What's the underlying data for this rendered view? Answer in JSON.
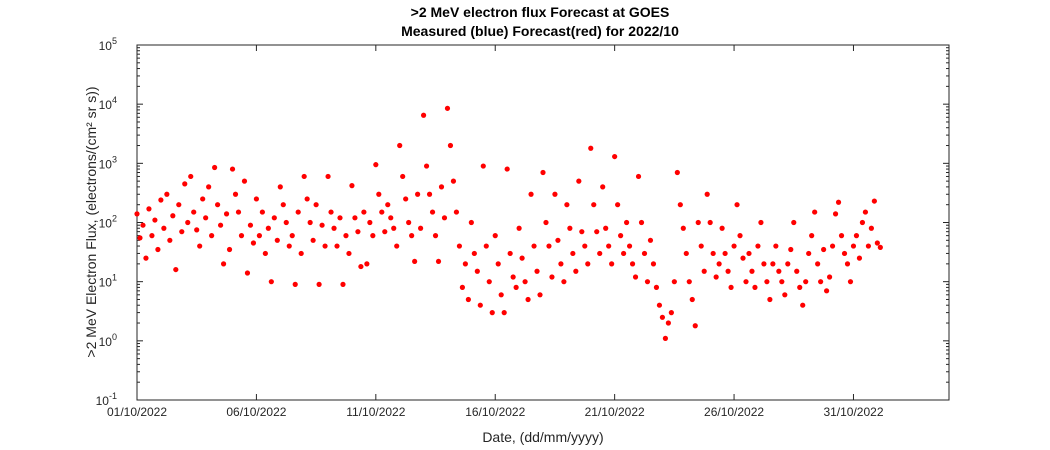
{
  "chart_data": {
    "type": "scatter",
    "title": ">2 MeV electron flux Forecast at GOES",
    "subtitle": "Measured (blue) Forecast(red) for 2022/10",
    "xlabel": "Date, (dd/mm/yyyy)",
    "ylabel": ">2 MeV Electron Flux, (electrons/(cm² sr s))",
    "yscale": "log",
    "ylim": [
      0.1,
      100000
    ],
    "xlim": [
      "01/10/2022",
      "04/11/2022"
    ],
    "x_ticks": [
      "01/10/2022",
      "06/10/2022",
      "11/10/2022",
      "16/10/2022",
      "21/10/2022",
      "26/10/2022",
      "31/10/2022"
    ],
    "y_ticks": [
      {
        "base": "10",
        "exp": "-1"
      },
      {
        "base": "10",
        "exp": "0"
      },
      {
        "base": "10",
        "exp": "1"
      },
      {
        "base": "10",
        "exp": "2"
      },
      {
        "base": "10",
        "exp": "3"
      },
      {
        "base": "10",
        "exp": "4"
      },
      {
        "base": "10",
        "exp": "5"
      }
    ],
    "grid": false,
    "series": [
      {
        "color": "#ff0000",
        "marker": "filled-circle",
        "points": [
          [
            "01/10/2022 00:00",
            140
          ],
          [
            "01/10/2022 03:00",
            55
          ],
          [
            "01/10/2022 06:00",
            90
          ],
          [
            "01/10/2022 09:00",
            25
          ],
          [
            "01/10/2022 12:00",
            170
          ],
          [
            "01/10/2022 15:00",
            60
          ],
          [
            "01/10/2022 18:00",
            110
          ],
          [
            "01/10/2022 21:00",
            35
          ],
          [
            "02/10/2022 00:00",
            240
          ],
          [
            "02/10/2022 03:00",
            80
          ],
          [
            "02/10/2022 06:00",
            300
          ],
          [
            "02/10/2022 09:00",
            50
          ],
          [
            "02/10/2022 12:00",
            130
          ],
          [
            "02/10/2022 15:00",
            16
          ],
          [
            "02/10/2022 18:00",
            200
          ],
          [
            "02/10/2022 21:00",
            70
          ],
          [
            "03/10/2022 00:00",
            450
          ],
          [
            "03/10/2022 03:00",
            100
          ],
          [
            "03/10/2022 06:00",
            600
          ],
          [
            "03/10/2022 09:00",
            150
          ],
          [
            "03/10/2022 12:00",
            75
          ],
          [
            "03/10/2022 15:00",
            40
          ],
          [
            "03/10/2022 18:00",
            250
          ],
          [
            "03/10/2022 21:00",
            120
          ],
          [
            "04/10/2022 00:00",
            400
          ],
          [
            "04/10/2022 03:00",
            60
          ],
          [
            "04/10/2022 06:00",
            850
          ],
          [
            "04/10/2022 09:00",
            200
          ],
          [
            "04/10/2022 12:00",
            90
          ],
          [
            "04/10/2022 15:00",
            20
          ],
          [
            "04/10/2022 18:00",
            140
          ],
          [
            "04/10/2022 21:00",
            35
          ],
          [
            "05/10/2022 00:00",
            800
          ],
          [
            "05/10/2022 03:00",
            300
          ],
          [
            "05/10/2022 06:00",
            150
          ],
          [
            "05/10/2022 09:00",
            60
          ],
          [
            "05/10/2022 12:00",
            500
          ],
          [
            "05/10/2022 15:00",
            14
          ],
          [
            "05/10/2022 18:00",
            90
          ],
          [
            "05/10/2022 21:00",
            45
          ],
          [
            "06/10/2022 00:00",
            250
          ],
          [
            "06/10/2022 03:00",
            60
          ],
          [
            "06/10/2022 06:00",
            150
          ],
          [
            "06/10/2022 09:00",
            30
          ],
          [
            "06/10/2022 12:00",
            80
          ],
          [
            "06/10/2022 15:00",
            10
          ],
          [
            "06/10/2022 18:00",
            120
          ],
          [
            "06/10/2022 21:00",
            50
          ],
          [
            "07/10/2022 00:00",
            400
          ],
          [
            "07/10/2022 03:00",
            200
          ],
          [
            "07/10/2022 06:00",
            100
          ],
          [
            "07/10/2022 09:00",
            40
          ],
          [
            "07/10/2022 12:00",
            60
          ],
          [
            "07/10/2022 15:00",
            9
          ],
          [
            "07/10/2022 18:00",
            150
          ],
          [
            "07/10/2022 21:00",
            30
          ],
          [
            "08/10/2022 00:00",
            600
          ],
          [
            "08/10/2022 03:00",
            250
          ],
          [
            "08/10/2022 06:00",
            100
          ],
          [
            "08/10/2022 09:00",
            50
          ],
          [
            "08/10/2022 12:00",
            200
          ],
          [
            "08/10/2022 15:00",
            9
          ],
          [
            "08/10/2022 18:00",
            90
          ],
          [
            "08/10/2022 21:00",
            40
          ],
          [
            "09/10/2022 00:00",
            600
          ],
          [
            "09/10/2022 03:00",
            150
          ],
          [
            "09/10/2022 06:00",
            80
          ],
          [
            "09/10/2022 09:00",
            40
          ],
          [
            "09/10/2022 12:00",
            120
          ],
          [
            "09/10/2022 15:00",
            9
          ],
          [
            "09/10/2022 18:00",
            60
          ],
          [
            "09/10/2022 21:00",
            30
          ],
          [
            "10/10/2022 00:00",
            420
          ],
          [
            "10/10/2022 03:00",
            120
          ],
          [
            "10/10/2022 06:00",
            70
          ],
          [
            "10/10/2022 09:00",
            18
          ],
          [
            "10/10/2022 12:00",
            150
          ],
          [
            "10/10/2022 15:00",
            20
          ],
          [
            "10/10/2022 18:00",
            100
          ],
          [
            "10/10/2022 21:00",
            60
          ],
          [
            "11/10/2022 00:00",
            950
          ],
          [
            "11/10/2022 03:00",
            300
          ],
          [
            "11/10/2022 06:00",
            150
          ],
          [
            "11/10/2022 09:00",
            70
          ],
          [
            "11/10/2022 12:00",
            200
          ],
          [
            "11/10/2022 15:00",
            120
          ],
          [
            "11/10/2022 18:00",
            80
          ],
          [
            "11/10/2022 21:00",
            40
          ],
          [
            "12/10/2022 00:00",
            2000
          ],
          [
            "12/10/2022 03:00",
            600
          ],
          [
            "12/10/2022 06:00",
            250
          ],
          [
            "12/10/2022 09:00",
            100
          ],
          [
            "12/10/2022 12:00",
            60
          ],
          [
            "12/10/2022 15:00",
            22
          ],
          [
            "12/10/2022 18:00",
            300
          ],
          [
            "12/10/2022 21:00",
            80
          ],
          [
            "13/10/2022 00:00",
            6500
          ],
          [
            "13/10/2022 03:00",
            900
          ],
          [
            "13/10/2022 06:00",
            300
          ],
          [
            "13/10/2022 09:00",
            150
          ],
          [
            "13/10/2022 12:00",
            60
          ],
          [
            "13/10/2022 15:00",
            22
          ],
          [
            "13/10/2022 18:00",
            400
          ],
          [
            "13/10/2022 21:00",
            120
          ],
          [
            "14/10/2022 00:00",
            8500
          ],
          [
            "14/10/2022 03:00",
            2000
          ],
          [
            "14/10/2022 06:00",
            500
          ],
          [
            "14/10/2022 09:00",
            150
          ],
          [
            "14/10/2022 12:00",
            40
          ],
          [
            "14/10/2022 15:00",
            8
          ],
          [
            "14/10/2022 18:00",
            20
          ],
          [
            "14/10/2022 21:00",
            5
          ],
          [
            "15/10/2022 00:00",
            100
          ],
          [
            "15/10/2022 03:00",
            30
          ],
          [
            "15/10/2022 06:00",
            15
          ],
          [
            "15/10/2022 09:00",
            4
          ],
          [
            "15/10/2022 12:00",
            900
          ],
          [
            "15/10/2022 15:00",
            40
          ],
          [
            "15/10/2022 18:00",
            10
          ],
          [
            "15/10/2022 21:00",
            3
          ],
          [
            "16/10/2022 00:00",
            60
          ],
          [
            "16/10/2022 03:00",
            20
          ],
          [
            "16/10/2022 06:00",
            6
          ],
          [
            "16/10/2022 09:00",
            3
          ],
          [
            "16/10/2022 12:00",
            800
          ],
          [
            "16/10/2022 15:00",
            30
          ],
          [
            "16/10/2022 18:00",
            12
          ],
          [
            "16/10/2022 21:00",
            8
          ],
          [
            "17/10/2022 00:00",
            80
          ],
          [
            "17/10/2022 03:00",
            25
          ],
          [
            "17/10/2022 06:00",
            10
          ],
          [
            "17/10/2022 09:00",
            5
          ],
          [
            "17/10/2022 12:00",
            300
          ],
          [
            "17/10/2022 15:00",
            40
          ],
          [
            "17/10/2022 18:00",
            15
          ],
          [
            "17/10/2022 21:00",
            6
          ],
          [
            "18/10/2022 00:00",
            700
          ],
          [
            "18/10/2022 03:00",
            100
          ],
          [
            "18/10/2022 06:00",
            40
          ],
          [
            "18/10/2022 09:00",
            12
          ],
          [
            "18/10/2022 12:00",
            300
          ],
          [
            "18/10/2022 15:00",
            50
          ],
          [
            "18/10/2022 18:00",
            20
          ],
          [
            "18/10/2022 21:00",
            10
          ],
          [
            "19/10/2022 00:00",
            200
          ],
          [
            "19/10/2022 03:00",
            80
          ],
          [
            "19/10/2022 06:00",
            30
          ],
          [
            "19/10/2022 09:00",
            15
          ],
          [
            "19/10/2022 12:00",
            500
          ],
          [
            "19/10/2022 15:00",
            70
          ],
          [
            "19/10/2022 18:00",
            40
          ],
          [
            "19/10/2022 21:00",
            20
          ],
          [
            "20/10/2022 00:00",
            1800
          ],
          [
            "20/10/2022 03:00",
            200
          ],
          [
            "20/10/2022 06:00",
            70
          ],
          [
            "20/10/2022 09:00",
            30
          ],
          [
            "20/10/2022 12:00",
            400
          ],
          [
            "20/10/2022 15:00",
            80
          ],
          [
            "20/10/2022 18:00",
            40
          ],
          [
            "20/10/2022 21:00",
            20
          ],
          [
            "21/10/2022 00:00",
            1300
          ],
          [
            "21/10/2022 03:00",
            200
          ],
          [
            "21/10/2022 06:00",
            60
          ],
          [
            "21/10/2022 09:00",
            30
          ],
          [
            "21/10/2022 12:00",
            100
          ],
          [
            "21/10/2022 15:00",
            40
          ],
          [
            "21/10/2022 18:00",
            20
          ],
          [
            "21/10/2022 21:00",
            12
          ],
          [
            "22/10/2022 00:00",
            600
          ],
          [
            "22/10/2022 03:00",
            100
          ],
          [
            "22/10/2022 06:00",
            30
          ],
          [
            "22/10/2022 09:00",
            10
          ],
          [
            "22/10/2022 12:00",
            50
          ],
          [
            "22/10/2022 15:00",
            20
          ],
          [
            "22/10/2022 18:00",
            8
          ],
          [
            "22/10/2022 21:00",
            4
          ],
          [
            "23/10/2022 00:00",
            2.5
          ],
          [
            "23/10/2022 03:00",
            1.1
          ],
          [
            "23/10/2022 06:00",
            2
          ],
          [
            "23/10/2022 09:00",
            3
          ],
          [
            "23/10/2022 12:00",
            10
          ],
          [
            "23/10/2022 15:00",
            700
          ],
          [
            "23/10/2022 18:00",
            200
          ],
          [
            "23/10/2022 21:00",
            80
          ],
          [
            "24/10/2022 00:00",
            30
          ],
          [
            "24/10/2022 03:00",
            10
          ],
          [
            "24/10/2022 06:00",
            5
          ],
          [
            "24/10/2022 09:00",
            1.8
          ],
          [
            "24/10/2022 12:00",
            100
          ],
          [
            "24/10/2022 15:00",
            40
          ],
          [
            "24/10/2022 18:00",
            15
          ],
          [
            "24/10/2022 21:00",
            300
          ],
          [
            "25/10/2022 00:00",
            100
          ],
          [
            "25/10/2022 03:00",
            30
          ],
          [
            "25/10/2022 06:00",
            12
          ],
          [
            "25/10/2022 09:00",
            20
          ],
          [
            "25/10/2022 12:00",
            80
          ],
          [
            "25/10/2022 15:00",
            30
          ],
          [
            "25/10/2022 18:00",
            15
          ],
          [
            "25/10/2022 21:00",
            8
          ],
          [
            "26/10/2022 00:00",
            40
          ],
          [
            "26/10/2022 03:00",
            200
          ],
          [
            "26/10/2022 06:00",
            60
          ],
          [
            "26/10/2022 09:00",
            25
          ],
          [
            "26/10/2022 12:00",
            10
          ],
          [
            "26/10/2022 15:00",
            30
          ],
          [
            "26/10/2022 18:00",
            15
          ],
          [
            "26/10/2022 21:00",
            8
          ],
          [
            "27/10/2022 00:00",
            40
          ],
          [
            "27/10/2022 03:00",
            100
          ],
          [
            "27/10/2022 06:00",
            20
          ],
          [
            "27/10/2022 09:00",
            10
          ],
          [
            "27/10/2022 12:00",
            5
          ],
          [
            "27/10/2022 15:00",
            20
          ],
          [
            "27/10/2022 18:00",
            40
          ],
          [
            "27/10/2022 21:00",
            15
          ],
          [
            "28/10/2022 00:00",
            10
          ],
          [
            "28/10/2022 03:00",
            6
          ],
          [
            "28/10/2022 06:00",
            20
          ],
          [
            "28/10/2022 09:00",
            35
          ],
          [
            "28/10/2022 12:00",
            100
          ],
          [
            "28/10/2022 15:00",
            15
          ],
          [
            "28/10/2022 18:00",
            8
          ],
          [
            "28/10/2022 21:00",
            4
          ],
          [
            "29/10/2022 00:00",
            10
          ],
          [
            "29/10/2022 03:00",
            30
          ],
          [
            "29/10/2022 06:00",
            60
          ],
          [
            "29/10/2022 09:00",
            150
          ],
          [
            "29/10/2022 12:00",
            20
          ],
          [
            "29/10/2022 15:00",
            10
          ],
          [
            "29/10/2022 18:00",
            35
          ],
          [
            "29/10/2022 21:00",
            7
          ],
          [
            "30/10/2022 00:00",
            12
          ],
          [
            "30/10/2022 03:00",
            40
          ],
          [
            "30/10/2022 06:00",
            140
          ],
          [
            "30/10/2022 09:00",
            220
          ],
          [
            "30/10/2022 12:00",
            60
          ],
          [
            "30/10/2022 15:00",
            30
          ],
          [
            "30/10/2022 18:00",
            20
          ],
          [
            "30/10/2022 21:00",
            10
          ],
          [
            "31/10/2022 00:00",
            40
          ],
          [
            "31/10/2022 03:00",
            60
          ],
          [
            "31/10/2022 06:00",
            25
          ],
          [
            "31/10/2022 09:00",
            100
          ],
          [
            "31/10/2022 12:00",
            150
          ],
          [
            "31/10/2022 15:00",
            40
          ],
          [
            "31/10/2022 18:00",
            80
          ],
          [
            "31/10/2022 21:00",
            230
          ],
          [
            "01/11/2022 00:00",
            45
          ],
          [
            "01/11/2022 03:00",
            38
          ]
        ]
      }
    ]
  }
}
